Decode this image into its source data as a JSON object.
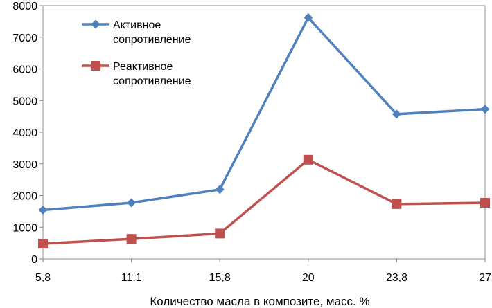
{
  "chart_data": {
    "type": "line",
    "title": "",
    "xlabel": "Количество масла в композите, масс. %",
    "ylabel": "",
    "categories": [
      "5,8",
      "11,1",
      "15,8",
      "20",
      "23,8",
      "27"
    ],
    "ylim": [
      0,
      8000
    ],
    "yticks": [
      0,
      1000,
      2000,
      3000,
      4000,
      5000,
      6000,
      7000,
      8000
    ],
    "grid": false,
    "legend_position": "top-left",
    "series": [
      {
        "name": "Активное сопротивление",
        "legend_lines": [
          "Активное",
          "сопротивление"
        ],
        "color": "#4F81BD",
        "marker": "diamond",
        "values": [
          1540,
          1770,
          2190,
          7620,
          4570,
          4730
        ]
      },
      {
        "name": "Реактивное сопротивление",
        "legend_lines": [
          "Реактивное",
          "сопротивление"
        ],
        "color": "#C0504D",
        "marker": "square",
        "values": [
          480,
          630,
          800,
          3130,
          1730,
          1770
        ]
      }
    ]
  }
}
